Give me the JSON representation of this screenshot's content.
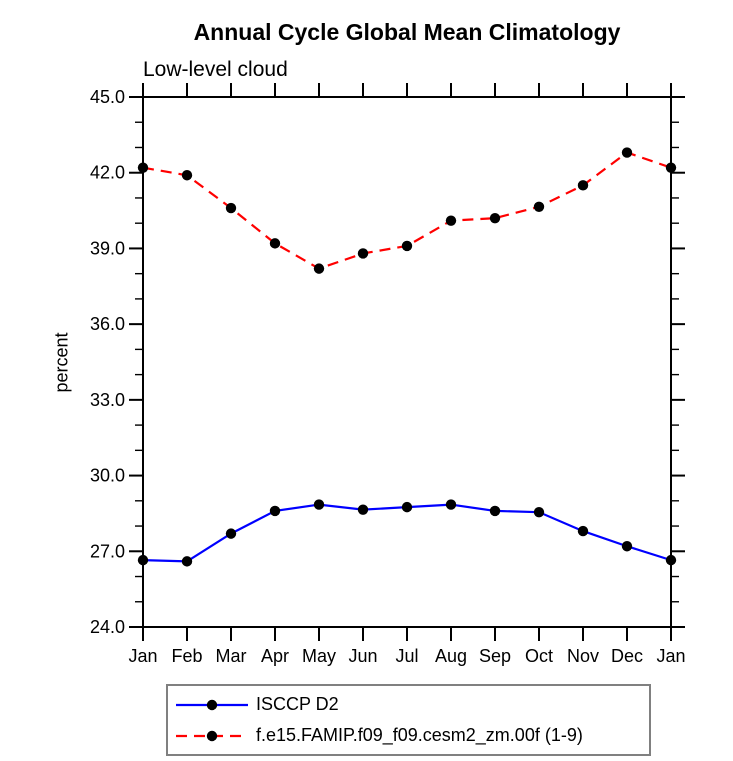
{
  "page": {
    "background": "#ffffff"
  },
  "chart_data": {
    "type": "line",
    "title": "Annual Cycle Global Mean Climatology",
    "subtitle": "Low-level cloud",
    "xlabel": "",
    "ylabel": "percent",
    "ylim": [
      24.0,
      45.0
    ],
    "ytick_labels": [
      "45.0",
      "42.0",
      "39.0",
      "36.0",
      "33.0",
      "30.0",
      "27.0",
      "24.0"
    ],
    "ytick_values": [
      45.0,
      42.0,
      39.0,
      36.0,
      33.0,
      30.0,
      27.0,
      24.0
    ],
    "minor_tick_interval": 1.0,
    "grid": false,
    "categories": [
      "Jan",
      "Feb",
      "Mar",
      "Apr",
      "May",
      "Jun",
      "Jul",
      "Aug",
      "Sep",
      "Oct",
      "Nov",
      "Dec",
      "Jan"
    ],
    "legend_position": "bottom",
    "axis_color": "#000000",
    "marker": "filled-circle",
    "marker_color": "#000000",
    "series": [
      {
        "name": "ISCCP D2",
        "color": "#0000ff",
        "line_style": "solid",
        "values": [
          26.65,
          26.6,
          27.7,
          28.6,
          28.85,
          28.65,
          28.75,
          28.85,
          28.6,
          28.55,
          27.8,
          27.2,
          26.65
        ]
      },
      {
        "name": "f.e15.FAMIP.f09_f09.cesm2_zm.00f (1-9)",
        "color": "#ff0000",
        "line_style": "dashed",
        "values": [
          42.2,
          41.9,
          40.6,
          39.2,
          38.2,
          38.8,
          39.1,
          40.1,
          40.2,
          40.65,
          41.5,
          42.8,
          42.2
        ]
      }
    ]
  }
}
